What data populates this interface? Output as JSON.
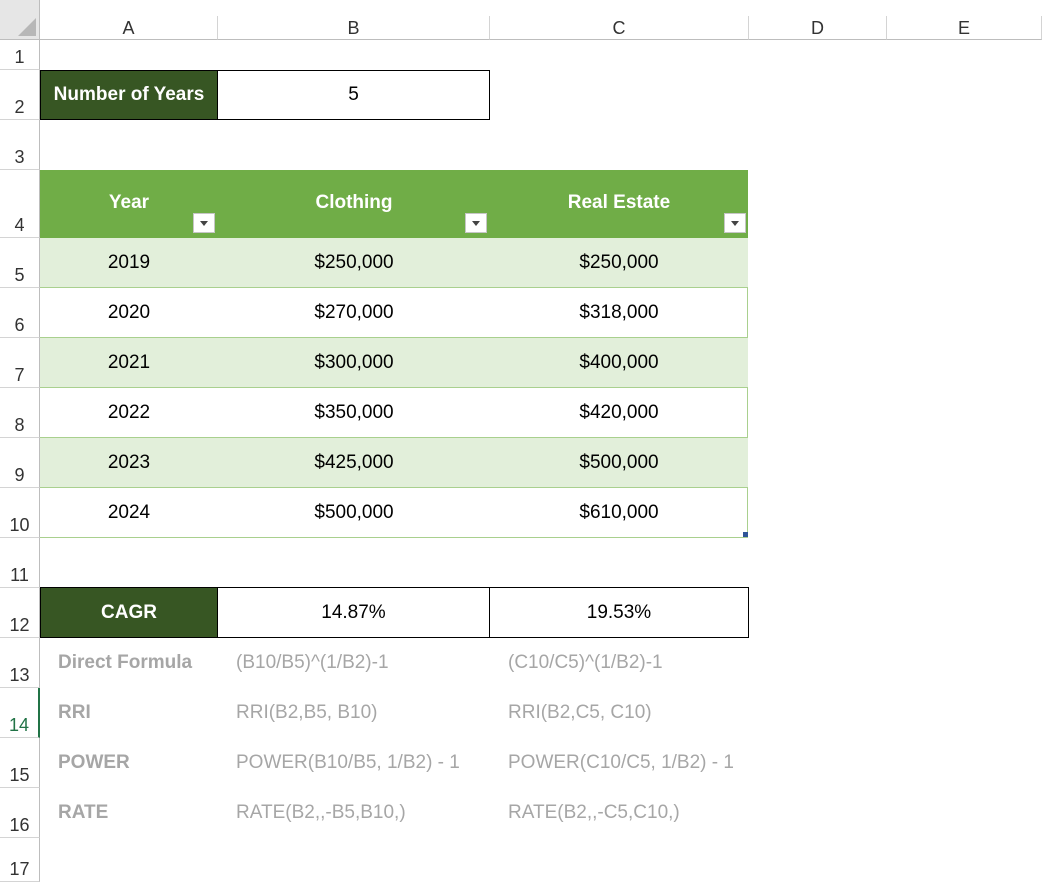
{
  "columns": [
    "A",
    "B",
    "C",
    "D",
    "E"
  ],
  "rows": [
    "1",
    "2",
    "3",
    "4",
    "5",
    "6",
    "7",
    "8",
    "9",
    "10",
    "11",
    "12",
    "13",
    "14",
    "15",
    "16",
    "17"
  ],
  "years_label": "Number of Years",
  "years_value": "5",
  "table": {
    "headers": [
      "Year",
      "Clothing",
      "Real Estate"
    ],
    "rows": [
      [
        "2019",
        "$250,000",
        "$250,000"
      ],
      [
        "2020",
        "$270,000",
        "$318,000"
      ],
      [
        "2021",
        "$300,000",
        "$400,000"
      ],
      [
        "2022",
        "$350,000",
        "$420,000"
      ],
      [
        "2023",
        "$425,000",
        "$500,000"
      ],
      [
        "2024",
        "$500,000",
        "$610,000"
      ]
    ]
  },
  "cagr": {
    "label": "CAGR",
    "clothing": "14.87%",
    "real_estate": "19.53%"
  },
  "formulas": [
    {
      "label": "Direct Formula",
      "b": "(B10/B5)^(1/B2)-1",
      "c": "(C10/C5)^(1/B2)-1"
    },
    {
      "label": "RRI",
      "b": "RRI(B2,B5, B10)",
      "c": "RRI(B2,C5, C10)"
    },
    {
      "label": "POWER",
      "b": "POWER(B10/B5, 1/B2) - 1",
      "c": "POWER(C10/C5, 1/B2) - 1"
    },
    {
      "label": "RATE",
      "b": "RATE(B2,,-B5,B10,)",
      "c": "RATE(B2,,-C5,C10,)"
    }
  ],
  "colors": {
    "dark_green": "#375623",
    "header_green": "#70ad47",
    "band_green": "#e2efda"
  }
}
